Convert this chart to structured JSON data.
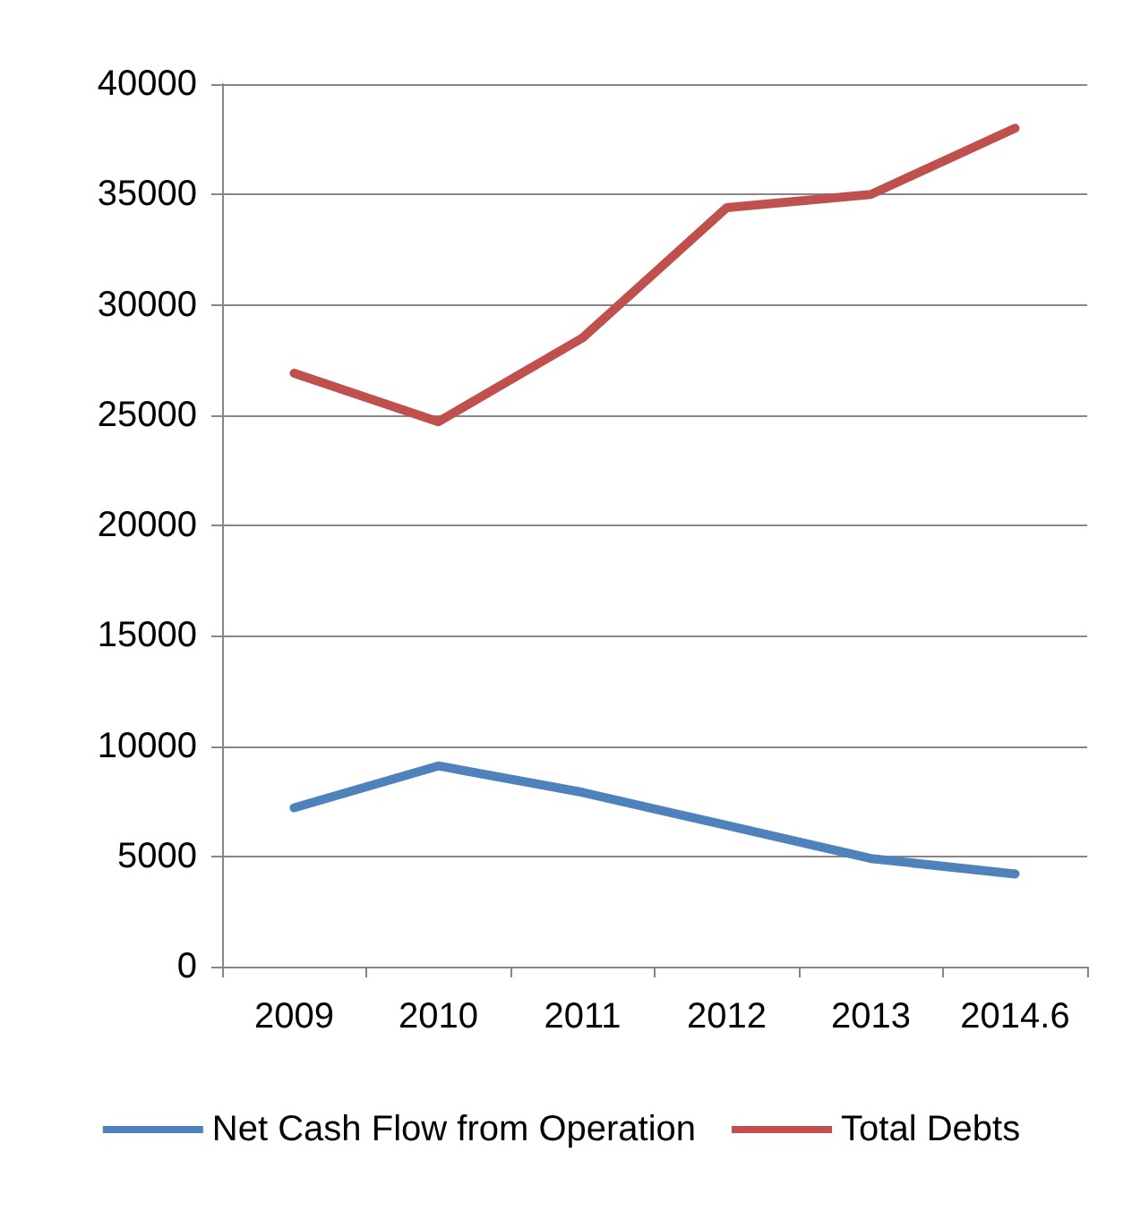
{
  "chart_data": {
    "type": "line",
    "categories": [
      "2009",
      "2010",
      "2011",
      "2012",
      "2013",
      "2014.6"
    ],
    "series": [
      {
        "name": "Net Cash Flow from Operation",
        "color": "#4f81bd",
        "values": [
          7200,
          9100,
          7900,
          6400,
          4900,
          4200
        ]
      },
      {
        "name": "Total Debts",
        "color": "#c0504d",
        "values": [
          26900,
          24700,
          28500,
          34400,
          35000,
          38000
        ]
      }
    ],
    "ylim": [
      0,
      40000
    ],
    "yticks": [
      0,
      5000,
      10000,
      15000,
      20000,
      25000,
      30000,
      35000,
      40000
    ],
    "grid": "y",
    "legend": "bottom",
    "marker": "none",
    "line_style": "solid"
  }
}
